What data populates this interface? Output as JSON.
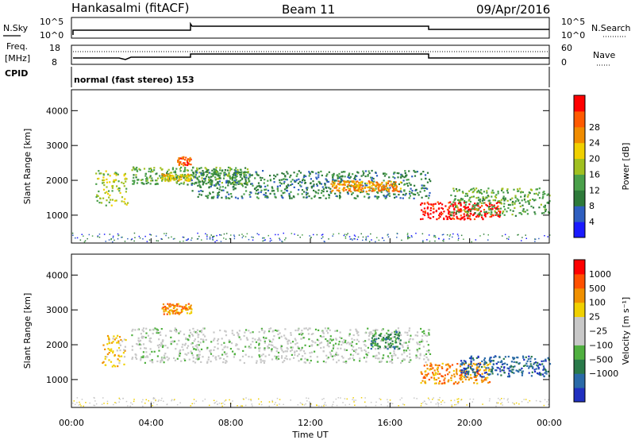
{
  "header": {
    "station": "Hankasalmi (fitACF)",
    "beam": "Beam 11",
    "date": "09/Apr/2016",
    "nsky_label": "N.Sky",
    "nsearch_label": "N.Search",
    "freq_label_line1": "Freq.",
    "freq_label_line2": "[MHz]",
    "nave_label": "Nave",
    "cpid_label": "CPID",
    "cpid_text": "normal (fast stereo) 153",
    "noise_tick_hi": "10^5",
    "noise_tick_lo": "10^0",
    "freq_tick_hi": "18",
    "freq_tick_lo": "8",
    "nave_tick_hi": "60",
    "nave_tick_lo": "0"
  },
  "chart_data": [
    {
      "type": "heatmap",
      "panel": "power",
      "ylabel": "Slant Range [km]",
      "xlabel": "",
      "ylim": [
        200,
        4600
      ],
      "yticks": [
        1000,
        2000,
        3000,
        4000
      ],
      "xticks": [
        "00:00",
        "04:00",
        "08:00",
        "12:00",
        "16:00",
        "20:00",
        "00:00"
      ],
      "xlim_hours": [
        0,
        24
      ],
      "colorbar": {
        "label": "Power [dB]",
        "ticks": [
          "4",
          "8",
          "12",
          "16",
          "20",
          "24",
          "28"
        ],
        "colors": [
          "#1a1aff",
          "#2f5fc0",
          "#2e7a3a",
          "#4aa04a",
          "#a0c020",
          "#f0d000",
          "#f08c00",
          "#ff5a00",
          "#ff0000"
        ]
      },
      "bands": [
        {
          "t0": 1.2,
          "t1": 2.8,
          "r0": 1300,
          "r1": 2300,
          "level": 4
        },
        {
          "t0": 3.0,
          "t1": 9.0,
          "r0": 1900,
          "r1": 2400,
          "level": 3
        },
        {
          "t0": 4.5,
          "t1": 6.0,
          "r0": 2000,
          "r1": 2200,
          "level": 5
        },
        {
          "t0": 6.0,
          "t1": 18.0,
          "r0": 1500,
          "r1": 2300,
          "level": 2
        },
        {
          "t0": 13.0,
          "t1": 16.5,
          "r0": 1700,
          "r1": 2000,
          "level": 6
        },
        {
          "t0": 17.5,
          "t1": 21.5,
          "r0": 900,
          "r1": 1400,
          "level": 8
        },
        {
          "t0": 19.0,
          "t1": 24.0,
          "r0": 1000,
          "r1": 1800,
          "level": 3
        },
        {
          "t0": 5.3,
          "t1": 6.0,
          "r0": 2450,
          "r1": 2700,
          "level": 7
        }
      ]
    },
    {
      "type": "heatmap",
      "panel": "velocity",
      "ylabel": "Slant Range [km]",
      "xlabel": "Time UT",
      "ylim": [
        200,
        4600
      ],
      "yticks": [
        1000,
        2000,
        3000,
        4000
      ],
      "xticks": [
        "00:00",
        "04:00",
        "08:00",
        "12:00",
        "16:00",
        "20:00",
        "00:00"
      ],
      "xlim_hours": [
        0,
        24
      ],
      "colorbar": {
        "label": "Velocity [m s⁻¹]",
        "ticks": [
          "1000",
          "500",
          "100",
          "25",
          "−25",
          "−100",
          "−500",
          "−1000"
        ],
        "colors": [
          "#2030c0",
          "#2a6aa8",
          "#2a7a4a",
          "#50b040",
          "#c8c8c8",
          "#c8c8c8",
          "#f0d000",
          "#f09000",
          "#ff5000",
          "#ff0000"
        ]
      },
      "bands": [
        {
          "t0": 1.5,
          "t1": 2.7,
          "r0": 1400,
          "r1": 2300,
          "level": 6
        },
        {
          "t0": 3.0,
          "t1": 18.0,
          "r0": 1500,
          "r1": 2500,
          "level": 4
        },
        {
          "t0": 4.5,
          "t1": 6.0,
          "r0": 2900,
          "r1": 3200,
          "level": 7
        },
        {
          "t0": 15.0,
          "t1": 16.5,
          "r0": 1900,
          "r1": 2400,
          "level": 2
        },
        {
          "t0": 17.5,
          "t1": 21.0,
          "r0": 900,
          "r1": 1500,
          "level": 7
        },
        {
          "t0": 19.5,
          "t1": 24.0,
          "r0": 1100,
          "r1": 1700,
          "level": 1
        }
      ]
    }
  ]
}
